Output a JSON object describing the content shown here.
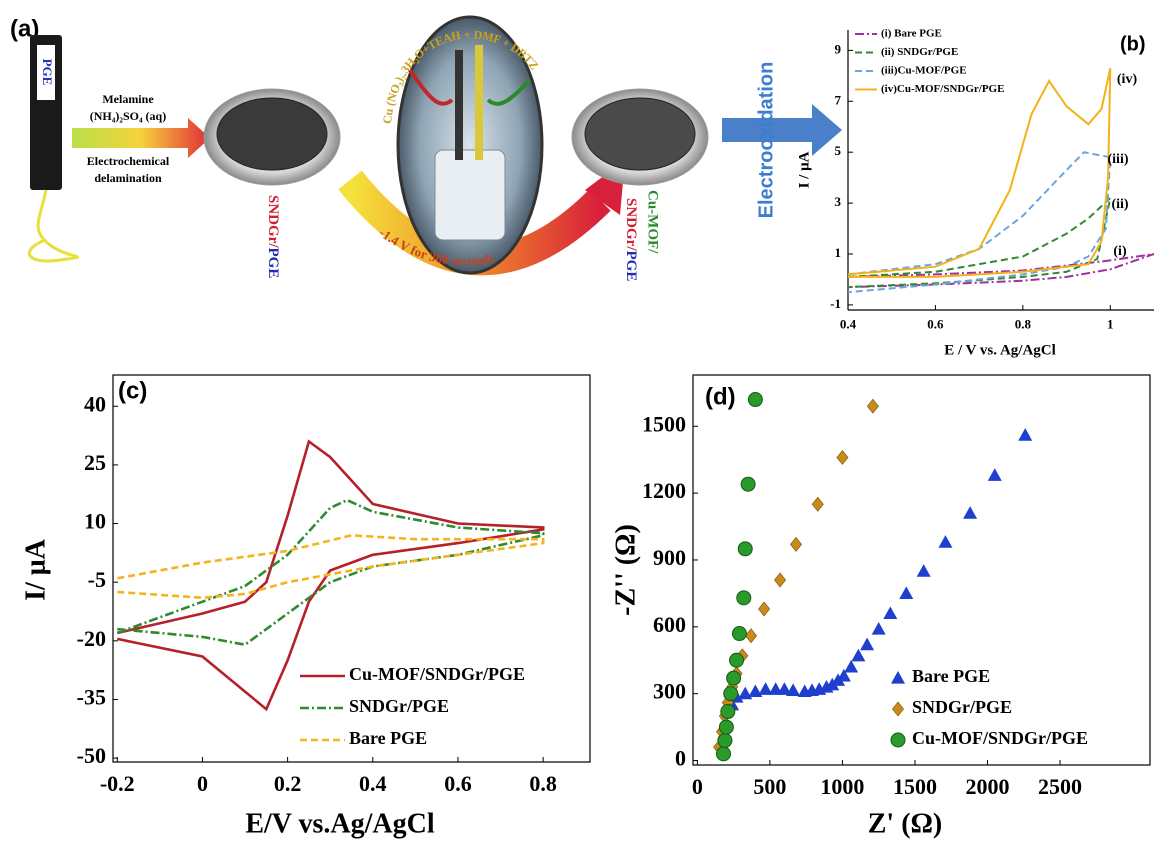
{
  "scheme": {
    "label": "(a)",
    "electrode": "PGE",
    "reagent_1": "Melamine",
    "reagent_2": "(NH₄)₂SO₄ (aq)",
    "step_1": "Electrochemical",
    "step_2": "delamination",
    "product_1": [
      "SNDGr/",
      "PGE"
    ],
    "solution": "Cu (NO₃)₂.3H₂O+TEAH + DMF + DBTZ",
    "condition": "-1.4 V for 360 seconds",
    "product_2": [
      "Cu-MOF/",
      "SNDGr/",
      "PGE"
    ],
    "process": "Electrooxidation"
  },
  "chart_data": [
    {
      "type": "line",
      "label": "(b)",
      "xlabel": "E / V vs. Ag/AgCl",
      "ylabel": "I / μA",
      "xlim": [
        0.4,
        1.1
      ],
      "xticks": [
        0.4,
        0.6,
        0.8,
        1
      ],
      "ylim": [
        -1.2,
        9.8
      ],
      "yticks": [
        -1,
        1,
        3,
        5,
        7,
        9
      ],
      "legend": "upper left",
      "series": [
        {
          "name": "(i) Bare PGE",
          "color": "#a0309f",
          "style": "dashdot",
          "x": [
            0.4,
            0.6,
            0.8,
            0.9,
            1.0,
            1.1,
            1.0,
            0.9,
            0.8,
            0.6,
            0.4
          ],
          "values": [
            0.1,
            0.2,
            0.35,
            0.55,
            0.75,
            1.0,
            0.4,
            0.1,
            -0.05,
            -0.2,
            -0.3
          ]
        },
        {
          "name": "(ii) SNDGr/PGE",
          "color": "#2f8a2f",
          "style": "dashed",
          "x": [
            0.4,
            0.6,
            0.8,
            0.9,
            0.95,
            1.0,
            0.97,
            0.9,
            0.8,
            0.6,
            0.4
          ],
          "values": [
            0.1,
            0.3,
            0.9,
            1.8,
            2.4,
            3.2,
            0.8,
            0.3,
            0.1,
            -0.15,
            -0.3
          ]
        },
        {
          "name": "(iii)Cu-MOF/PGE",
          "color": "#6aa6dc",
          "style": "dashed",
          "x": [
            0.4,
            0.6,
            0.7,
            0.8,
            0.9,
            0.94,
            1.0,
            0.99,
            0.95,
            0.9,
            0.8,
            0.6,
            0.4
          ],
          "values": [
            0.2,
            0.6,
            1.2,
            2.5,
            4.3,
            5.0,
            4.8,
            2.0,
            0.9,
            0.5,
            0.2,
            -0.2,
            -0.5
          ]
        },
        {
          "name": "(iv)Cu-MOF/SNDGr/PGE",
          "color": "#f3b21b",
          "style": "solid",
          "x": [
            0.4,
            0.6,
            0.7,
            0.77,
            0.82,
            0.86,
            0.9,
            0.95,
            0.98,
            1.0,
            0.995,
            0.98,
            0.95,
            0.8,
            0.6,
            0.4
          ],
          "values": [
            0.2,
            0.5,
            1.2,
            3.5,
            6.5,
            7.8,
            6.8,
            6.1,
            6.7,
            8.3,
            4.0,
            1.5,
            0.6,
            0.3,
            0.1,
            0.1
          ]
        }
      ],
      "annotations": [
        "(iv)",
        "(iii)",
        "(ii)",
        "(i)"
      ]
    },
    {
      "type": "line",
      "label": "(c)",
      "xlabel": "E/V vs.Ag/AgCl",
      "ylabel": "I/ μA",
      "xlim": [
        -0.21,
        0.91
      ],
      "xticks": [
        -0.2,
        0,
        0.2,
        0.4,
        0.6,
        0.8
      ],
      "ylim": [
        -51,
        48
      ],
      "yticks": [
        -50,
        -35,
        -20,
        -5,
        10,
        25,
        40
      ],
      "legend": "lower center",
      "series": [
        {
          "name": "Cu-MOF/SNDGr/PGE",
          "color": "#b5202a",
          "style": "solid",
          "x": [
            -0.2,
            0,
            0.1,
            0.15,
            0.2,
            0.25,
            0.3,
            0.4,
            0.6,
            0.8,
            0.8,
            0.6,
            0.4,
            0.3,
            0.25,
            0.2,
            0.15,
            0.1,
            0,
            -0.2
          ],
          "values": [
            -18,
            -13,
            -10,
            -5,
            12,
            31,
            27,
            15,
            10,
            9,
            8.5,
            5,
            2,
            -2,
            -10,
            -25,
            -37.5,
            -33,
            -24,
            -19.5
          ]
        },
        {
          "name": "SNDGr/PGE",
          "color": "#2e8b2e",
          "style": "dashdot",
          "x": [
            -0.2,
            0,
            0.1,
            0.2,
            0.3,
            0.34,
            0.4,
            0.6,
            0.8,
            0.8,
            0.6,
            0.4,
            0.3,
            0.2,
            0.1,
            0,
            -0.2
          ],
          "values": [
            -18,
            -10,
            -6,
            2,
            14,
            16,
            13,
            9,
            7.5,
            7,
            2,
            -1,
            -5,
            -13,
            -21,
            -19,
            -17
          ]
        },
        {
          "name": "Bare PGE",
          "color": "#f4b41a",
          "style": "dashed",
          "x": [
            -0.2,
            0,
            0.2,
            0.35,
            0.5,
            0.8,
            0.8,
            0.6,
            0.4,
            0.2,
            0.1,
            0,
            -0.2
          ],
          "values": [
            -4,
            0,
            3,
            7,
            6,
            6,
            5,
            2,
            -1,
            -5,
            -8,
            -9,
            -7.5
          ]
        }
      ]
    },
    {
      "type": "scatter",
      "label": "(d)",
      "xlabel": "Z' (Ω)",
      "ylabel": "-Z'' (Ω)",
      "xlim": [
        -30,
        3120
      ],
      "xticks": [
        0,
        500,
        1000,
        1500,
        2000,
        2500
      ],
      "ylim": [
        -20,
        1730
      ],
      "yticks": [
        0,
        300,
        600,
        900,
        1200,
        1500
      ],
      "legend": "lower right",
      "series": [
        {
          "name": "Bare PGE",
          "color": "#1f3fcf",
          "marker": "triangle",
          "x": [
            240,
            270,
            330,
            400,
            470,
            540,
            600,
            660,
            740,
            790,
            840,
            890,
            930,
            970,
            1010,
            1060,
            1110,
            1170,
            1250,
            1330,
            1440,
            1560,
            1710,
            1880,
            2050,
            2260
          ],
          "values": [
            250,
            285,
            300,
            310,
            320,
            320,
            320,
            315,
            310,
            315,
            320,
            330,
            340,
            360,
            380,
            420,
            470,
            520,
            590,
            660,
            750,
            850,
            980,
            1110,
            1280,
            1460
          ]
        },
        {
          "name": "SNDGr/PGE",
          "color": "#c88a1a",
          "marker": "diamond",
          "x": [
            150,
            170,
            190,
            210,
            240,
            270,
            310,
            370,
            460,
            570,
            680,
            830,
            1000,
            1210
          ],
          "values": [
            60,
            130,
            200,
            260,
            330,
            390,
            470,
            560,
            680,
            810,
            970,
            1150,
            1360,
            1590
          ]
        },
        {
          "name": "Cu-MOF/SNDGr/PGE",
          "color": "#2a9a2a",
          "marker": "circle",
          "x": [
            180,
            190,
            200,
            210,
            230,
            250,
            270,
            290,
            320,
            330,
            350,
            400
          ],
          "values": [
            30,
            90,
            150,
            220,
            300,
            370,
            450,
            570,
            730,
            950,
            1240,
            1620
          ]
        }
      ]
    }
  ]
}
